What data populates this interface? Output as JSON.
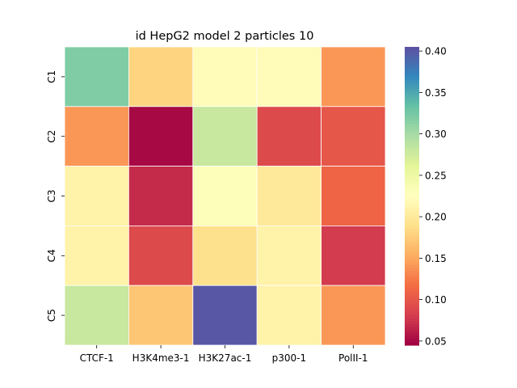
{
  "chart_data": {
    "type": "heatmap",
    "title": "id HepG2 model 2 particles 10",
    "xlabel": "",
    "ylabel": "",
    "x_categories": [
      "CTCF-1",
      "H3K4me3-1",
      "H3K27ac-1",
      "p300-1",
      "PolII-1"
    ],
    "y_categories": [
      "C1",
      "C2",
      "C3",
      "C4",
      "C5"
    ],
    "values": [
      [
        0.32,
        0.18,
        0.22,
        0.22,
        0.14
      ],
      [
        0.14,
        0.05,
        0.28,
        0.09,
        0.1
      ],
      [
        0.21,
        0.07,
        0.23,
        0.2,
        0.11
      ],
      [
        0.21,
        0.09,
        0.19,
        0.21,
        0.08
      ],
      [
        0.28,
        0.17,
        0.4,
        0.21,
        0.14
      ]
    ],
    "colormap": "Spectral",
    "vmin": 0.045,
    "vmax": 0.405,
    "colorbar": {
      "ticks": [
        0.05,
        0.1,
        0.15,
        0.2,
        0.25,
        0.3,
        0.35,
        0.4
      ],
      "tick_labels": [
        "0.05",
        "0.10",
        "0.15",
        "0.20",
        "0.25",
        "0.30",
        "0.35",
        "0.40"
      ]
    },
    "grid": "white cell borders",
    "legend": "colorbar on right"
  }
}
